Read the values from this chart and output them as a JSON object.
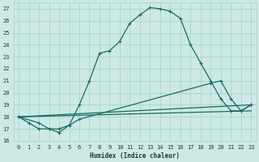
{
  "title": "",
  "xlabel": "Humidex (Indice chaleur)",
  "xlim": [
    -0.5,
    23.5
  ],
  "ylim": [
    16,
    27.5
  ],
  "yticks": [
    16,
    17,
    18,
    19,
    20,
    21,
    22,
    23,
    24,
    25,
    26,
    27
  ],
  "xticks": [
    0,
    1,
    2,
    3,
    4,
    5,
    6,
    7,
    8,
    9,
    10,
    11,
    12,
    13,
    14,
    15,
    16,
    17,
    18,
    19,
    20,
    21,
    22,
    23
  ],
  "bg_color": "#cce9e4",
  "grid_color": "#a8d0ca",
  "line_color": "#1a6b60",
  "series": [
    {
      "x": [
        0,
        1,
        2,
        3,
        4,
        5,
        6,
        7,
        8,
        9,
        10,
        11,
        12,
        13,
        14,
        15,
        16,
        17,
        18,
        19,
        20,
        21,
        22,
        23
      ],
      "y": [
        18.0,
        17.5,
        17.0,
        17.0,
        16.7,
        17.3,
        19.0,
        21.0,
        23.3,
        23.5,
        24.3,
        25.8,
        26.5,
        27.1,
        27.0,
        26.8,
        26.2,
        24.0,
        22.5,
        21.0,
        19.5,
        18.5,
        18.5,
        19.0
      ],
      "linestyle": "-",
      "marker": true
    },
    {
      "x": [
        0,
        23
      ],
      "y": [
        18.0,
        19.0
      ],
      "linestyle": "-",
      "marker": false
    },
    {
      "x": [
        0,
        23
      ],
      "y": [
        18.0,
        18.5
      ],
      "linestyle": "-",
      "marker": false
    },
    {
      "x": [
        0,
        2,
        3,
        4,
        5,
        6,
        19,
        20,
        21,
        22,
        23
      ],
      "y": [
        18.0,
        17.5,
        17.0,
        17.0,
        17.3,
        17.8,
        20.8,
        21.0,
        19.5,
        18.5,
        19.0
      ],
      "linestyle": "-",
      "marker": true
    }
  ]
}
